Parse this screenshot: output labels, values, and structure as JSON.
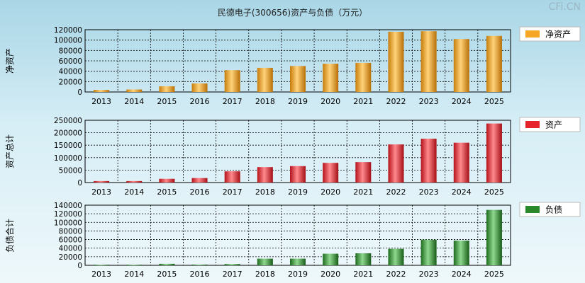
{
  "title": "民德电子(300656)资产与负债（万元）",
  "watermark": "CFi.CN",
  "colors": {
    "net_assets": "#f5a623",
    "assets": "#e8222a",
    "liabilities": "#2a8a2a"
  },
  "chart_data": [
    {
      "type": "bar",
      "ylabel": "净资产",
      "legend": "净资产",
      "legend_position": "right",
      "color": "#f5a623",
      "grid": true,
      "categories": [
        "2013",
        "2014",
        "2015",
        "2016",
        "2017",
        "2018",
        "2019",
        "2020",
        "2021",
        "2022",
        "2023",
        "2024",
        "2025"
      ],
      "values": [
        4000,
        4800,
        11000,
        16500,
        42000,
        46500,
        50000,
        54500,
        56000,
        116000,
        117000,
        102000,
        108000
      ],
      "ylim": [
        0,
        120000
      ],
      "yticks": [
        "0",
        "20000",
        "40000",
        "60000",
        "80000",
        "100000",
        "120000"
      ]
    },
    {
      "type": "bar",
      "ylabel": "资产总计",
      "legend": "资产",
      "legend_position": "right",
      "color": "#e8222a",
      "grid": true,
      "categories": [
        "2013",
        "2014",
        "2015",
        "2016",
        "2017",
        "2018",
        "2019",
        "2020",
        "2021",
        "2022",
        "2023",
        "2024",
        "2025"
      ],
      "values": [
        6000,
        6000,
        15000,
        18000,
        45000,
        62000,
        66000,
        79000,
        82000,
        153000,
        176000,
        160000,
        237000
      ],
      "ylim": [
        0,
        250000
      ],
      "yticks": [
        "0",
        "50000",
        "100000",
        "150000",
        "200000",
        "250000"
      ]
    },
    {
      "type": "bar",
      "ylabel": "负债合计",
      "legend": "负债",
      "legend_position": "right",
      "color": "#2a8a2a",
      "grid": true,
      "categories": [
        "2013",
        "2014",
        "2015",
        "2016",
        "2017",
        "2018",
        "2019",
        "2020",
        "2021",
        "2022",
        "2023",
        "2024",
        "2025"
      ],
      "values": [
        1500,
        1500,
        3500,
        1800,
        3000,
        15500,
        15500,
        27000,
        28000,
        38500,
        59500,
        57500,
        129000
      ],
      "ylim": [
        0,
        140000
      ],
      "yticks": [
        "0",
        "20000",
        "40000",
        "60000",
        "80000",
        "100000",
        "120000",
        "140000"
      ]
    }
  ]
}
